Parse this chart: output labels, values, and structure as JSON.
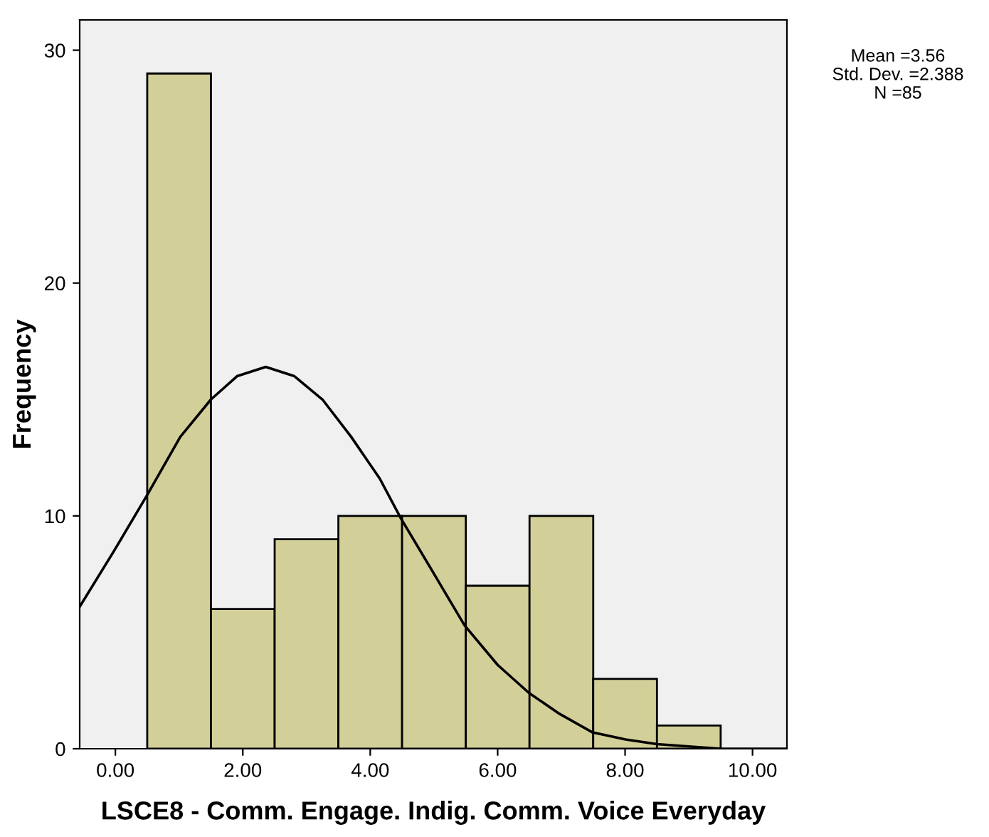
{
  "chart_data": {
    "type": "histogram",
    "xlabel": "LSCE8 - Comm. Engage. Indig. Comm. Voice Everyday",
    "ylabel": "Frequency",
    "bins": [
      0.5,
      1.5,
      2.5,
      3.5,
      4.5,
      5.5,
      6.5,
      7.5,
      8.5,
      9.5
    ],
    "values": [
      29,
      6,
      9,
      10,
      10,
      7,
      10,
      3,
      1
    ],
    "color": "#d3cf98",
    "series": [
      {
        "type": "line",
        "color": "#000000",
        "x": [
          -0.56,
          -0.02,
          0.5,
          1.02,
          1.5,
          1.91,
          2.36,
          2.81,
          3.25,
          3.7,
          4.15,
          4.48,
          4.96,
          5.48,
          6.0,
          6.49,
          6.97,
          7.49,
          8.01,
          8.5,
          9.5,
          10.54
        ],
        "values": [
          6.1,
          8.5,
          10.9,
          13.4,
          15.0,
          16.0,
          16.4,
          16.0,
          15.0,
          13.4,
          11.6,
          9.9,
          7.7,
          5.3,
          3.6,
          2.4,
          1.5,
          0.7,
          0.4,
          0.2,
          0.0,
          0.0
        ]
      }
    ],
    "xlim": [
      -0.56,
      10.54
    ],
    "ylim": [
      0,
      31.3
    ],
    "xticks": [
      {
        "value": 0,
        "label": "0.00"
      },
      {
        "value": 2,
        "label": "2.00"
      },
      {
        "value": 4,
        "label": "4.00"
      },
      {
        "value": 6,
        "label": "6.00"
      },
      {
        "value": 8,
        "label": "8.00"
      },
      {
        "value": 10,
        "label": "10.00"
      }
    ],
    "yticks": [
      0,
      10,
      20,
      30
    ],
    "annotations": [
      "Mean =3.56",
      "Std. Dev. =2.388",
      "N =85"
    ],
    "grid": false,
    "legend": false
  }
}
